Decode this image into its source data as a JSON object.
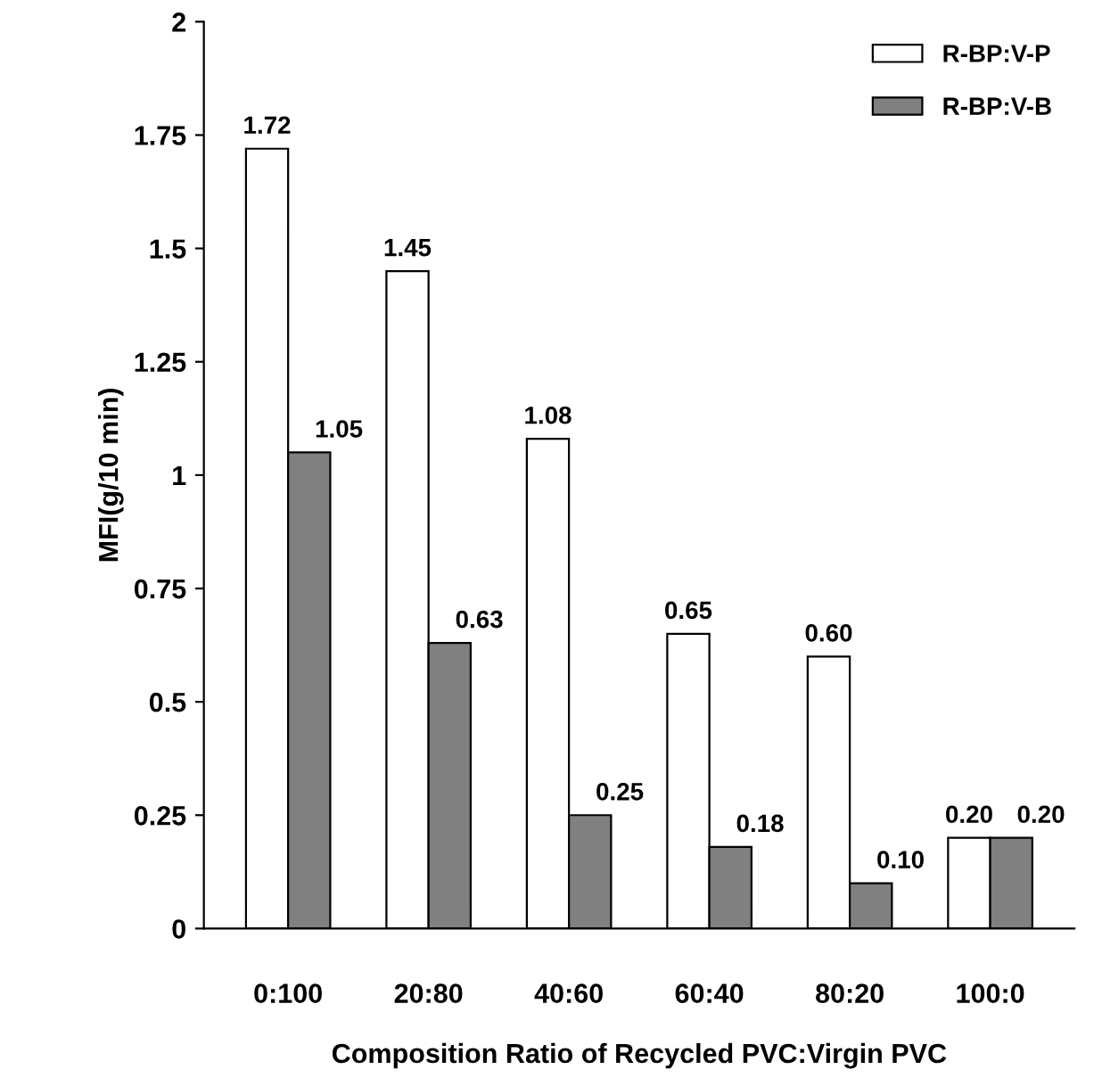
{
  "chart_data": {
    "type": "bar",
    "xlabel": "Composition Ratio of Recycled PVC:Virgin PVC",
    "ylabel": "MFI(g/10 min)",
    "categories": [
      "0:100",
      "20:80",
      "40:60",
      "60:40",
      "80:20",
      "100:0"
    ],
    "series": [
      {
        "name": "R-BP:V-P",
        "color": "#ffffff",
        "values": [
          1.72,
          1.45,
          1.08,
          0.65,
          0.6,
          0.2
        ],
        "value_labels": [
          "1.72",
          "1.45",
          "1.08",
          "0.65",
          "0.60",
          "0.20"
        ]
      },
      {
        "name": "R-BP:V-B",
        "color": "#808080",
        "values": [
          1.05,
          0.63,
          0.25,
          0.18,
          0.1,
          0.2
        ],
        "value_labels": [
          "1.05",
          "0.63",
          "0.25",
          "0.18",
          "0.10",
          "0.20"
        ]
      }
    ],
    "ylim": [
      0,
      2
    ],
    "yticks": [
      0,
      {
        "value": 0.25,
        "label": "0.25"
      },
      {
        "value": 0.5,
        "label": "0.5"
      },
      {
        "value": 0.75,
        "label": "0.75"
      },
      1,
      {
        "value": 1.25,
        "label": "1.25"
      },
      {
        "value": 1.5,
        "label": "1.5"
      },
      {
        "value": 1.75,
        "label": "1.75"
      },
      2
    ],
    "grid": false,
    "legend": "top right"
  }
}
